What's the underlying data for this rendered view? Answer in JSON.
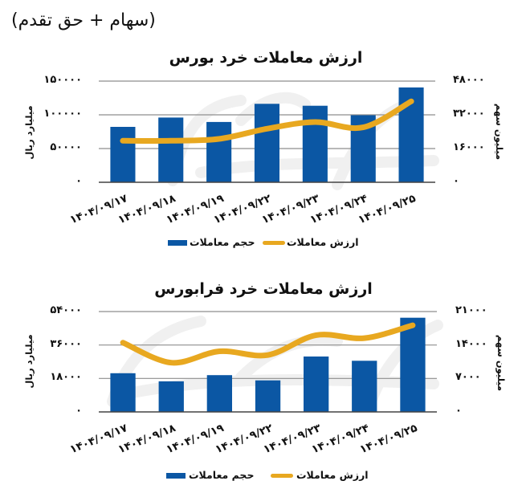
{
  "header": {
    "subtitle": "(سهام + حق تقدم)"
  },
  "colors": {
    "bar": "#0b57a4",
    "line": "#e8a820",
    "grid": "#8e8e8e",
    "axis": "#444444",
    "watermark": "#000000"
  },
  "charts": [
    {
      "left_axis_label": "میلیارد ریال",
      "right_axis_label": "میلیون سهم",
      "left_ticks": [
        "۱۵۰۰۰۰",
        "۱۰۰۰۰۰",
        "۵۰۰۰۰",
        "۰"
      ],
      "right_ticks": [
        "۴۸۰۰۰",
        "۳۲۰۰۰",
        "۱۶۰۰۰",
        "۰"
      ],
      "legend": {
        "bars": "حجم معاملات",
        "line": "ارزش معاملات"
      }
    },
    {
      "left_axis_label": "میلیارد ریال",
      "right_axis_label": "میلیون سهم",
      "left_ticks": [
        "۵۴۰۰۰",
        "۳۶۰۰۰",
        "۱۸۰۰۰",
        "۰"
      ],
      "right_ticks": [
        "۲۱۰۰۰",
        "۱۴۰۰۰",
        "۷۰۰۰",
        "۰"
      ],
      "legend": {
        "bars": "حجم معاملات",
        "line": "ارزش معاملات"
      }
    }
  ],
  "chart_data": [
    {
      "type": "bar",
      "title": "ارزش معاملات خرد بورس",
      "subtitle": "(سهام + حق تقدم)",
      "categories": [
        "۱۴۰۴/۰۹/۱۷",
        "۱۴۰۴/۰۹/۱۸",
        "۱۴۰۴/۰۹/۱۹",
        "۱۴۰۴/۰۹/۲۲",
        "۱۴۰۴/۰۹/۲۳",
        "۱۴۰۴/۰۹/۲۴",
        "۱۴۰۴/۰۹/۲۵"
      ],
      "series": [
        {
          "name": "حجم معاملات",
          "type": "bar",
          "axis": "right",
          "color": "#0b57a4",
          "values": [
            26300,
            30700,
            28600,
            37200,
            36300,
            31800,
            45000
          ]
        },
        {
          "name": "ارزش معاملات",
          "type": "line",
          "axis": "left",
          "color": "#e8a820",
          "values": [
            61500,
            61500,
            64300,
            79400,
            89300,
            81400,
            120000
          ]
        }
      ],
      "ylabel_left": "میلیارد ریال",
      "ylim_left": [
        0,
        150000
      ],
      "yticks_left": [
        0,
        50000,
        100000,
        150000
      ],
      "ylabel_right": "میلیون سهم",
      "ylim_right": [
        0,
        48000
      ],
      "yticks_right": [
        0,
        16000,
        32000,
        48000
      ],
      "xlabel": "",
      "grid": true,
      "legend_position": "bottom"
    },
    {
      "type": "bar",
      "title": "ارزش معاملات خرد فرابورس",
      "subtitle": "(سهام + حق تقدم)",
      "categories": [
        "۱۴۰۴/۰۹/۱۷",
        "۱۴۰۴/۰۹/۱۸",
        "۱۴۰۴/۰۹/۱۹",
        "۱۴۰۴/۰۹/۲۲",
        "۱۴۰۴/۰۹/۲۳",
        "۱۴۰۴/۰۹/۲۴",
        "۱۴۰۴/۰۹/۲۵"
      ],
      "series": [
        {
          "name": "حجم معاملات",
          "type": "bar",
          "axis": "right",
          "color": "#0b57a4",
          "values": [
            8100,
            6400,
            7700,
            6600,
            11600,
            10700,
            19700
          ]
        },
        {
          "name": "ارزش معاملات",
          "type": "line",
          "axis": "left",
          "color": "#e8a820",
          "values": [
            37300,
            26500,
            32600,
            30600,
            41300,
            39700,
            46600
          ]
        }
      ],
      "ylabel_left": "میلیارد ریال",
      "ylim_left": [
        0,
        54000
      ],
      "yticks_left": [
        0,
        18000,
        36000,
        54000
      ],
      "ylabel_right": "میلیون سهم",
      "ylim_right": [
        0,
        21000
      ],
      "yticks_right": [
        0,
        7000,
        14000,
        21000
      ],
      "xlabel": "",
      "grid": true,
      "legend_position": "bottom"
    }
  ]
}
